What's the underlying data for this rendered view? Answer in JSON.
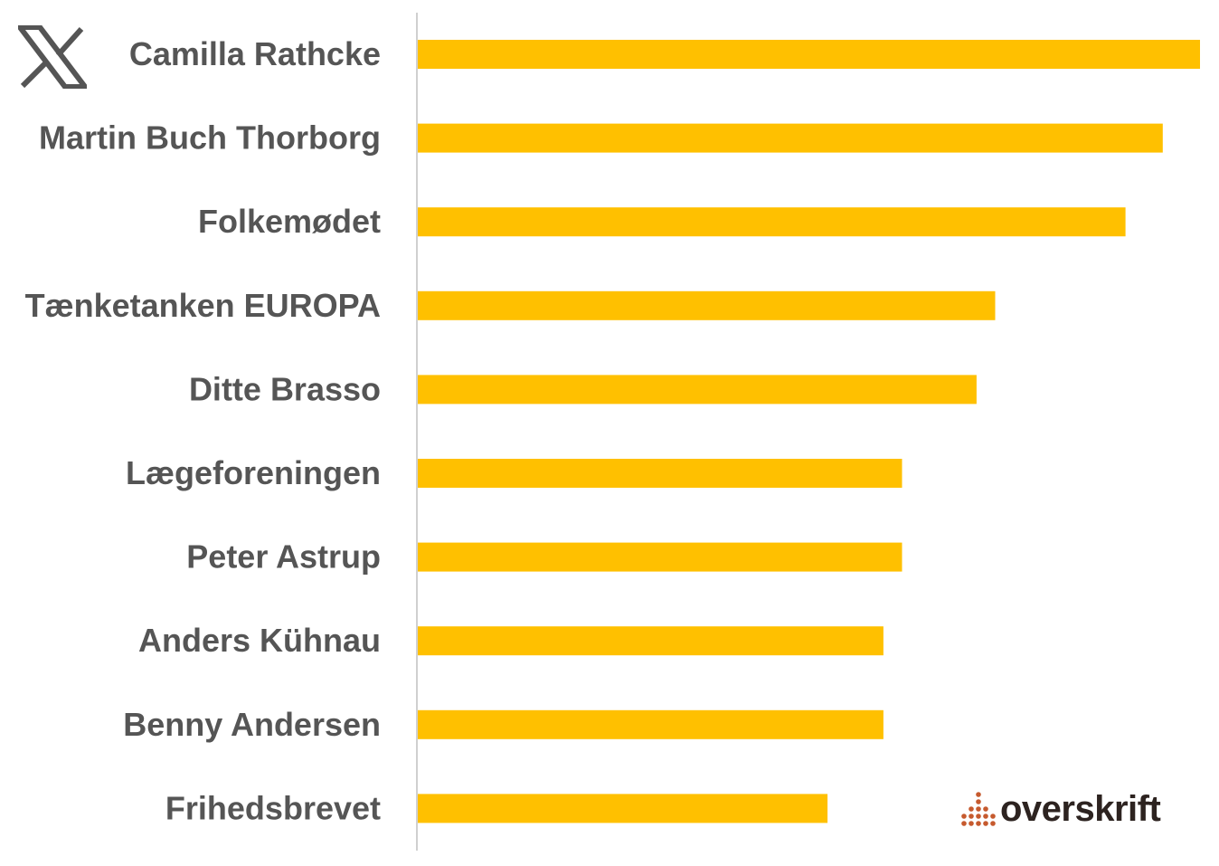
{
  "brand": {
    "name": "overskrift",
    "accent": "#c65a2e",
    "text_color": "#2d2320"
  },
  "platform_icon": "x-logo-icon",
  "chart_data": {
    "type": "bar",
    "orientation": "horizontal",
    "categories": [
      "Camilla Rathcke",
      "Martin Buch Thorborg",
      "Folkemødet",
      "Tænketanken EUROPA",
      "Ditte Brasso",
      "Lægeforeningen",
      "Peter Astrup",
      "Anders Kühnau",
      "Benny Andersen",
      "Frihedsbrevet"
    ],
    "values": [
      42,
      40,
      38,
      31,
      30,
      26,
      26,
      25,
      25,
      22
    ],
    "xlim": [
      0,
      42
    ],
    "grid": false,
    "bar_color": "#ffc000",
    "label_color": "#555555",
    "axis_color": "#d0d0d0",
    "title": "",
    "xlabel": "",
    "ylabel": ""
  }
}
